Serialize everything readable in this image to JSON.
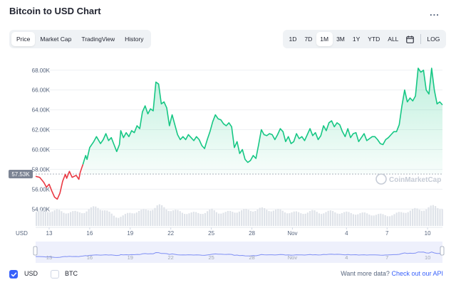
{
  "header": {
    "title": "Bitcoin to USD Chart",
    "more_label": "..."
  },
  "tabs": [
    {
      "label": "Price",
      "active": true
    },
    {
      "label": "Market Cap",
      "active": false
    },
    {
      "label": "TradingView",
      "active": false
    },
    {
      "label": "History",
      "active": false
    }
  ],
  "ranges": [
    {
      "label": "1D",
      "active": false
    },
    {
      "label": "7D",
      "active": false
    },
    {
      "label": "1M",
      "active": true
    },
    {
      "label": "3M",
      "active": false
    },
    {
      "label": "1Y",
      "active": false
    },
    {
      "label": "YTD",
      "active": false
    },
    {
      "label": "ALL",
      "active": false
    }
  ],
  "log_label": "LOG",
  "chart_data": {
    "type": "line",
    "title": "Bitcoin to USD Chart",
    "currency_label": "USD",
    "y_ticks": [
      54000,
      56000,
      58000,
      60000,
      62000,
      64000,
      66000,
      68000
    ],
    "y_tick_labels": [
      "54.00K",
      "56.00K",
      "58.00K",
      "60.00K",
      "62.00K",
      "64.00K",
      "66.00K",
      "68.00K"
    ],
    "ylim": [
      52300,
      69200
    ],
    "x_ticks": [
      {
        "label": "13",
        "day": 13
      },
      {
        "label": "16",
        "day": 16
      },
      {
        "label": "19",
        "day": 19
      },
      {
        "label": "22",
        "day": 22
      },
      {
        "label": "25",
        "day": 25
      },
      {
        "label": "28",
        "day": 28
      },
      {
        "label": "Nov",
        "day": 31
      },
      {
        "label": "4",
        "day": 35
      },
      {
        "label": "7",
        "day": 38
      },
      {
        "label": "10",
        "day": 41
      }
    ],
    "xlim": [
      12,
      42.1
    ],
    "reference_value": 57530,
    "reference_label": "57.53K",
    "colors": {
      "up": "#16c784",
      "down": "#ea3943",
      "ref": "#aab0bb",
      "brush": "#7f8ff4"
    },
    "watermark": "CoinMarketCap",
    "price_series": [
      [
        12.0,
        57300
      ],
      [
        12.3,
        57200
      ],
      [
        12.6,
        56700
      ],
      [
        12.8,
        56200
      ],
      [
        13.0,
        56500
      ],
      [
        13.2,
        55800
      ],
      [
        13.4,
        55200
      ],
      [
        13.6,
        55000
      ],
      [
        13.8,
        55600
      ],
      [
        14.0,
        56800
      ],
      [
        14.2,
        57500
      ],
      [
        14.3,
        57100
      ],
      [
        14.5,
        57800
      ],
      [
        14.7,
        57200
      ],
      [
        15.0,
        57400
      ],
      [
        15.2,
        57000
      ],
      [
        15.3,
        57700
      ],
      [
        15.5,
        58500
      ],
      [
        15.7,
        59400
      ],
      [
        15.8,
        59000
      ],
      [
        16.0,
        60200
      ],
      [
        16.3,
        60800
      ],
      [
        16.5,
        61300
      ],
      [
        16.8,
        60600
      ],
      [
        17.0,
        61000
      ],
      [
        17.2,
        61600
      ],
      [
        17.4,
        60900
      ],
      [
        17.6,
        61200
      ],
      [
        17.8,
        60500
      ],
      [
        18.0,
        59800
      ],
      [
        18.2,
        60500
      ],
      [
        18.3,
        61900
      ],
      [
        18.5,
        61200
      ],
      [
        18.7,
        61700
      ],
      [
        18.9,
        61300
      ],
      [
        19.1,
        61900
      ],
      [
        19.3,
        61700
      ],
      [
        19.5,
        62400
      ],
      [
        19.7,
        62100
      ],
      [
        19.9,
        63800
      ],
      [
        20.1,
        64400
      ],
      [
        20.3,
        63600
      ],
      [
        20.5,
        64100
      ],
      [
        20.7,
        63900
      ],
      [
        20.9,
        66800
      ],
      [
        21.1,
        66600
      ],
      [
        21.3,
        64600
      ],
      [
        21.5,
        64800
      ],
      [
        21.7,
        64200
      ],
      [
        21.9,
        62400
      ],
      [
        22.1,
        63500
      ],
      [
        22.3,
        62500
      ],
      [
        22.5,
        61500
      ],
      [
        22.7,
        61000
      ],
      [
        22.9,
        61300
      ],
      [
        23.1,
        61000
      ],
      [
        23.3,
        61500
      ],
      [
        23.5,
        61200
      ],
      [
        23.7,
        60900
      ],
      [
        23.9,
        61300
      ],
      [
        24.1,
        61000
      ],
      [
        24.3,
        60400
      ],
      [
        24.5,
        60100
      ],
      [
        24.7,
        61000
      ],
      [
        24.9,
        61800
      ],
      [
        25.1,
        62800
      ],
      [
        25.3,
        63500
      ],
      [
        25.5,
        63100
      ],
      [
        25.7,
        63000
      ],
      [
        25.9,
        62600
      ],
      [
        26.1,
        62400
      ],
      [
        26.3,
        62700
      ],
      [
        26.5,
        62300
      ],
      [
        26.7,
        60200
      ],
      [
        26.9,
        60800
      ],
      [
        27.1,
        59600
      ],
      [
        27.3,
        60000
      ],
      [
        27.5,
        59000
      ],
      [
        27.7,
        58700
      ],
      [
        27.9,
        58900
      ],
      [
        28.1,
        59400
      ],
      [
        28.3,
        59100
      ],
      [
        28.5,
        60500
      ],
      [
        28.7,
        62000
      ],
      [
        28.9,
        61500
      ],
      [
        29.1,
        61400
      ],
      [
        29.3,
        61600
      ],
      [
        29.5,
        61500
      ],
      [
        29.7,
        61000
      ],
      [
        29.9,
        61500
      ],
      [
        30.1,
        62100
      ],
      [
        30.3,
        61800
      ],
      [
        30.5,
        60800
      ],
      [
        30.7,
        61300
      ],
      [
        30.9,
        60600
      ],
      [
        31.1,
        60800
      ],
      [
        31.3,
        61600
      ],
      [
        31.5,
        61100
      ],
      [
        31.7,
        61300
      ],
      [
        31.9,
        60900
      ],
      [
        32.1,
        61500
      ],
      [
        32.3,
        62100
      ],
      [
        32.5,
        61400
      ],
      [
        32.7,
        61700
      ],
      [
        32.9,
        61000
      ],
      [
        33.1,
        61400
      ],
      [
        33.3,
        62400
      ],
      [
        33.5,
        61900
      ],
      [
        33.7,
        62700
      ],
      [
        33.9,
        62900
      ],
      [
        34.1,
        62300
      ],
      [
        34.3,
        62700
      ],
      [
        34.5,
        62500
      ],
      [
        34.7,
        61800
      ],
      [
        34.9,
        61300
      ],
      [
        35.1,
        62100
      ],
      [
        35.3,
        61200
      ],
      [
        35.5,
        61600
      ],
      [
        35.7,
        61700
      ],
      [
        35.9,
        60800
      ],
      [
        36.1,
        61200
      ],
      [
        36.3,
        61600
      ],
      [
        36.5,
        60900
      ],
      [
        36.7,
        61100
      ],
      [
        36.9,
        61300
      ],
      [
        37.1,
        61300
      ],
      [
        37.3,
        61000
      ],
      [
        37.5,
        60600
      ],
      [
        37.7,
        60500
      ],
      [
        37.9,
        61000
      ],
      [
        38.1,
        61200
      ],
      [
        38.3,
        61500
      ],
      [
        38.5,
        61800
      ],
      [
        38.7,
        61800
      ],
      [
        38.9,
        62500
      ],
      [
        39.1,
        64400
      ],
      [
        39.3,
        66000
      ],
      [
        39.5,
        64800
      ],
      [
        39.7,
        65200
      ],
      [
        39.9,
        64900
      ],
      [
        40.1,
        65400
      ],
      [
        40.3,
        68200
      ],
      [
        40.5,
        67800
      ],
      [
        40.7,
        68000
      ],
      [
        40.9,
        66000
      ],
      [
        41.1,
        65600
      ],
      [
        41.3,
        68200
      ],
      [
        41.5,
        66000
      ],
      [
        41.7,
        64600
      ],
      [
        41.9,
        64800
      ],
      [
        42.1,
        64500
      ]
    ],
    "volume_series": [
      [
        12.0,
        0.62
      ],
      [
        12.5,
        0.64
      ],
      [
        13.0,
        0.67
      ],
      [
        13.5,
        0.66
      ],
      [
        14.0,
        0.6
      ],
      [
        14.5,
        0.61
      ],
      [
        15.0,
        0.58
      ],
      [
        15.5,
        0.62
      ],
      [
        16.0,
        0.72
      ],
      [
        16.5,
        0.85
      ],
      [
        17.0,
        0.7
      ],
      [
        17.5,
        0.52
      ],
      [
        18.0,
        0.38
      ],
      [
        18.5,
        0.45
      ],
      [
        19.0,
        0.58
      ],
      [
        19.5,
        0.64
      ],
      [
        20.0,
        0.66
      ],
      [
        20.5,
        0.75
      ],
      [
        21.0,
        0.86
      ],
      [
        21.5,
        0.8
      ],
      [
        22.0,
        0.68
      ],
      [
        22.5,
        0.62
      ],
      [
        23.0,
        0.58
      ],
      [
        23.5,
        0.55
      ],
      [
        24.0,
        0.56
      ],
      [
        24.5,
        0.6
      ],
      [
        25.0,
        0.68
      ],
      [
        25.5,
        0.6
      ],
      [
        26.0,
        0.57
      ],
      [
        26.5,
        0.62
      ],
      [
        27.0,
        0.66
      ],
      [
        27.5,
        0.67
      ],
      [
        28.0,
        0.7
      ],
      [
        28.5,
        0.73
      ],
      [
        29.0,
        0.72
      ],
      [
        29.5,
        0.7
      ],
      [
        30.0,
        0.66
      ],
      [
        30.5,
        0.62
      ],
      [
        31.0,
        0.58
      ],
      [
        31.5,
        0.56
      ],
      [
        32.0,
        0.6
      ],
      [
        32.5,
        0.63
      ],
      [
        33.0,
        0.58
      ],
      [
        33.5,
        0.6
      ],
      [
        34.0,
        0.62
      ],
      [
        34.5,
        0.58
      ],
      [
        35.0,
        0.56
      ],
      [
        35.5,
        0.55
      ],
      [
        36.0,
        0.54
      ],
      [
        36.5,
        0.52
      ],
      [
        37.0,
        0.5
      ],
      [
        37.5,
        0.48
      ],
      [
        38.0,
        0.46
      ],
      [
        38.5,
        0.5
      ],
      [
        39.0,
        0.58
      ],
      [
        39.5,
        0.66
      ],
      [
        40.0,
        0.7
      ],
      [
        40.5,
        0.72
      ],
      [
        41.0,
        0.78
      ],
      [
        41.5,
        0.84
      ],
      [
        42.0,
        0.8
      ]
    ],
    "navigator_x_ticks": [
      "13",
      "16",
      "19",
      "22",
      "25",
      "28",
      "Nov",
      "4",
      "7",
      "10"
    ]
  },
  "footer": {
    "usd_label": "USD",
    "usd_checked": true,
    "btc_label": "BTC",
    "btc_checked": false,
    "more_data_text": "Want more data?",
    "api_link_text": "Check out our API"
  }
}
